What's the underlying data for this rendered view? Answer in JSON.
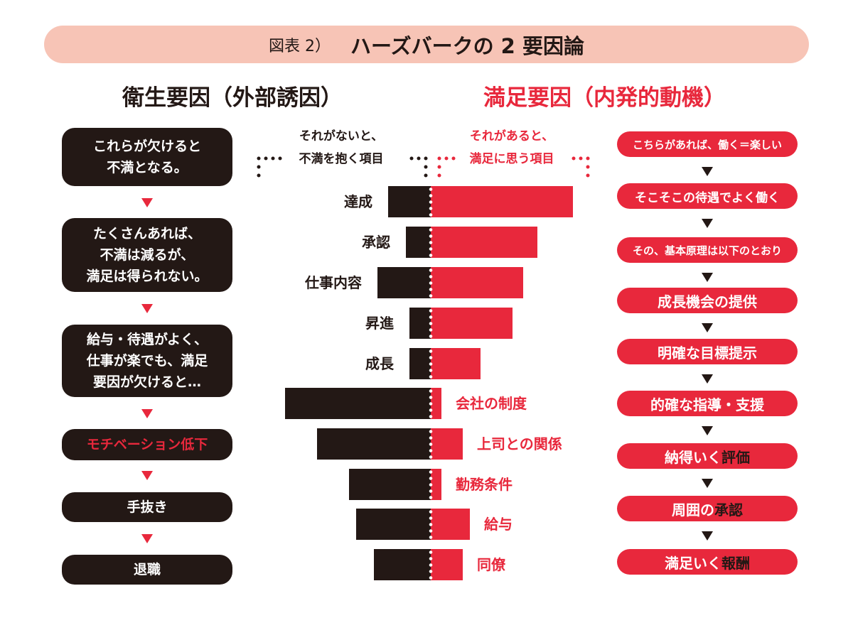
{
  "header": {
    "figure_label": "図表 2）",
    "title": "ハーズバークの 2 要因論"
  },
  "colors": {
    "red": "#e8283c",
    "dark": "#231815",
    "pill": "#f7c4b6"
  },
  "hygiene": {
    "heading": "衛生要因（外部誘因）",
    "steps": [
      {
        "text": "これらが欠けると\n不満となる。"
      },
      {
        "text": "たくさんあれば、\n不満は減るが、\n満足は得られない。"
      },
      {
        "text": "給与・待遇がよく、\n仕事が楽でも、満足\n要因が欠けると…"
      },
      {
        "text": "モチベーション低下",
        "highlight": true
      },
      {
        "text": "手抜き"
      },
      {
        "text": "退職"
      }
    ]
  },
  "motivator": {
    "heading": "満足要因（内発的動機）",
    "steps": [
      {
        "parts": [
          "こちらがあれば、働く＝楽しい",
          ""
        ]
      },
      {
        "parts": [
          "そこそこの待遇でよく働く",
          ""
        ]
      },
      {
        "parts": [
          "その、基本原理は以下のとおり",
          ""
        ]
      },
      {
        "parts": [
          "成長機会の提供",
          ""
        ]
      },
      {
        "parts": [
          "明確な目標提示",
          ""
        ]
      },
      {
        "parts": [
          "的確な指導・支援",
          ""
        ]
      },
      {
        "parts": [
          "納得いく",
          "評価"
        ]
      },
      {
        "parts": [
          "周囲の",
          "承認"
        ]
      },
      {
        "parts": [
          "満足いく",
          "報酬"
        ]
      }
    ]
  },
  "chart_data": {
    "type": "bar",
    "orientation": "horizontal-diverging",
    "left_header": "それがないと、\n不満を抱く項目",
    "right_header": "それがあると、\n満足に思う項目",
    "series": [
      {
        "name": "不満を抱く項目",
        "color": "#231815"
      },
      {
        "name": "満足に思う項目",
        "color": "#e8283c"
      }
    ],
    "items": [
      {
        "label": "達成",
        "dissatisfaction": 12,
        "satisfaction": 40,
        "label_side": "left"
      },
      {
        "label": "承認",
        "dissatisfaction": 7,
        "satisfaction": 30,
        "label_side": "left"
      },
      {
        "label": "仕事内容",
        "dissatisfaction": 15,
        "satisfaction": 26,
        "label_side": "left"
      },
      {
        "label": "昇進",
        "dissatisfaction": 6,
        "satisfaction": 23,
        "label_side": "left"
      },
      {
        "label": "成長",
        "dissatisfaction": 6,
        "satisfaction": 14,
        "label_side": "left"
      },
      {
        "label": "会社の制度",
        "dissatisfaction": 41,
        "satisfaction": 3,
        "label_side": "right"
      },
      {
        "label": "上司との関係",
        "dissatisfaction": 32,
        "satisfaction": 9,
        "label_side": "right"
      },
      {
        "label": "勤務条件",
        "dissatisfaction": 23,
        "satisfaction": 3,
        "label_side": "right"
      },
      {
        "label": "給与",
        "dissatisfaction": 21,
        "satisfaction": 11,
        "label_side": "right"
      },
      {
        "label": "同僚",
        "dissatisfaction": 16,
        "satisfaction": 9,
        "label_side": "right"
      }
    ]
  }
}
